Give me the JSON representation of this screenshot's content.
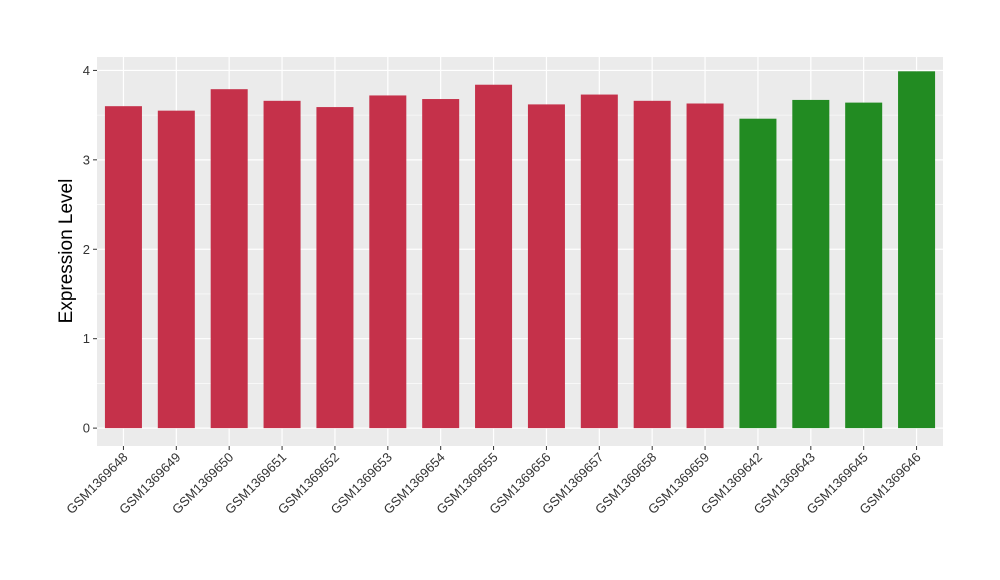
{
  "chart_data": {
    "type": "bar",
    "title": "",
    "xlabel": "",
    "ylabel": "Expression Level",
    "ylim": [
      -0.2,
      4.15
    ],
    "yticks": [
      0,
      1,
      2,
      3,
      4
    ],
    "grid": true,
    "categories": [
      "GSM1369648",
      "GSM1369649",
      "GSM1369650",
      "GSM1369651",
      "GSM1369652",
      "GSM1369653",
      "GSM1369654",
      "GSM1369655",
      "GSM1369656",
      "GSM1369657",
      "GSM1369658",
      "GSM1369659",
      "GSM1369642",
      "GSM1369643",
      "GSM1369645",
      "GSM1369646"
    ],
    "values": [
      3.6,
      3.55,
      3.79,
      3.66,
      3.59,
      3.72,
      3.68,
      3.84,
      3.62,
      3.73,
      3.66,
      3.63,
      3.46,
      3.67,
      3.64,
      3.99
    ],
    "bar_colors": [
      "#c5314a",
      "#c5314a",
      "#c5314a",
      "#c5314a",
      "#c5314a",
      "#c5314a",
      "#c5314a",
      "#c5314a",
      "#c5314a",
      "#c5314a",
      "#c5314a",
      "#c5314a",
      "#228b22",
      "#228b22",
      "#228b22",
      "#228b22"
    ],
    "panel_background": "#ebebeb",
    "gridline_color": "#ffffff"
  }
}
